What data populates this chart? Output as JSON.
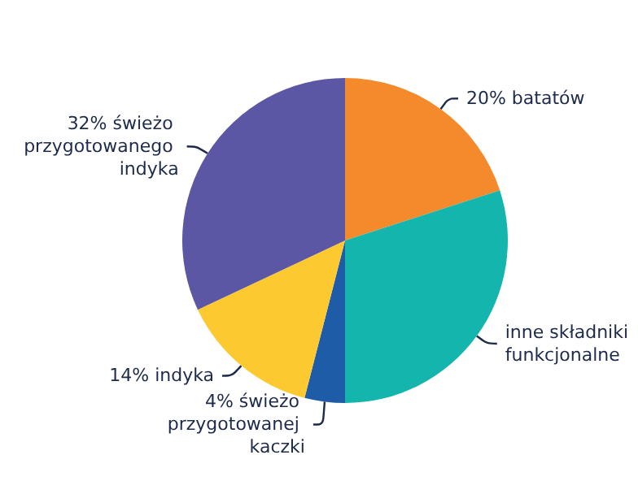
{
  "chart_data": {
    "type": "pie",
    "categories": [
      "20% batatów",
      "inne składniki funkcjonalne",
      "4% świeżo przygotowanej kaczki",
      "14% indyka",
      "32% świeżo przygotowanego indyka"
    ],
    "values": [
      20,
      30,
      4,
      14,
      32
    ],
    "colors": [
      "#f58a2c",
      "#14b5ad",
      "#1f5ca8",
      "#fdc930",
      "#5b57a4"
    ],
    "legend": false
  }
}
